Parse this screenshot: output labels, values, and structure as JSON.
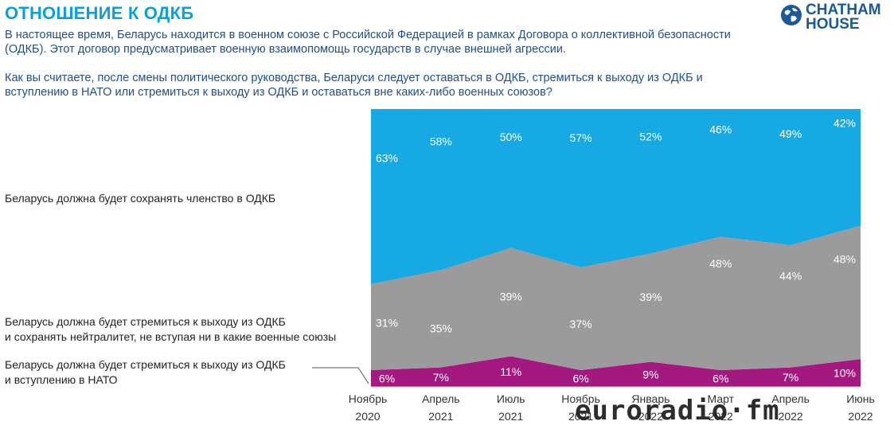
{
  "header": {
    "title": "ОТНОШЕНИЕ К ОДКБ",
    "intro": "В настоящее время, Беларусь находится в военном союзе с Российской Федерацией в рамках Договора о коллективной безопасности (ОДКБ). Этот договор предусматривает военную взаимопомощь государств в случае внешней агрессии.",
    "question": "Как вы считаете, после смены политического руководства, Беларуси следует оставаться в ОДКБ, стремиться к выходу из ОДКБ и вступлению в НАТО или стремиться к выходу из ОДКБ и оставаться вне каких-либо военных союзов?"
  },
  "logo": {
    "line1": "CHATHAM",
    "line2": "HOUSE",
    "icon": "globe-icon"
  },
  "watermark": "euroradio·fm",
  "chart_data": {
    "type": "area",
    "stacked": true,
    "categories": [
      [
        "Ноябрь",
        "2020"
      ],
      [
        "Апрель",
        "2021"
      ],
      [
        "Июль",
        "2021"
      ],
      [
        "Ноябрь",
        "2021"
      ],
      [
        "Январь",
        "2022"
      ],
      [
        "Март",
        "2022"
      ],
      [
        "Апрель",
        "2022"
      ],
      [
        "Июнь",
        "2022"
      ]
    ],
    "ylim": [
      0,
      100
    ],
    "series": [
      {
        "name": "Беларусь должна будет стремиться к выходу из ОДКБ и вступлению в НАТО",
        "color": "#a3197f",
        "values": [
          6,
          7,
          11,
          6,
          9,
          6,
          7,
          10
        ],
        "labels": [
          "6%",
          "7%",
          "11%",
          "6%",
          "9%",
          "6%",
          "7%",
          "10%"
        ]
      },
      {
        "name": "Беларусь должна будет стремиться к выходу из ОДКБ и сохранять нейтралитет, не вступая ни в какие военные союзы",
        "color": "#9b9b9b",
        "values": [
          31,
          35,
          39,
          37,
          39,
          48,
          44,
          48
        ],
        "labels": [
          "31%",
          "35%",
          "39%",
          "37%",
          "39%",
          "48%",
          "44%",
          "48%"
        ]
      },
      {
        "name": "Беларусь должна будет сохранять членство в ОДКБ",
        "color": "#17a9e3",
        "values": [
          63,
          58,
          50,
          57,
          52,
          46,
          49,
          42
        ],
        "labels": [
          "63%",
          "58%",
          "50%",
          "57%",
          "52%",
          "46%",
          "49%",
          "42%"
        ]
      }
    ]
  },
  "series_labels": {
    "csto": "Беларусь должна будет сохранять членство в ОДКБ",
    "neutral_line1": "Беларусь должна будет стремиться к выходу из ОДКБ",
    "neutral_line2": "и сохранять нейтралитет, не вступая ни в какие военные союзы",
    "nato_line1": "Беларусь должна будет стремиться к выходу из ОДКБ",
    "nato_line2": "и вступлению в НАТО"
  }
}
